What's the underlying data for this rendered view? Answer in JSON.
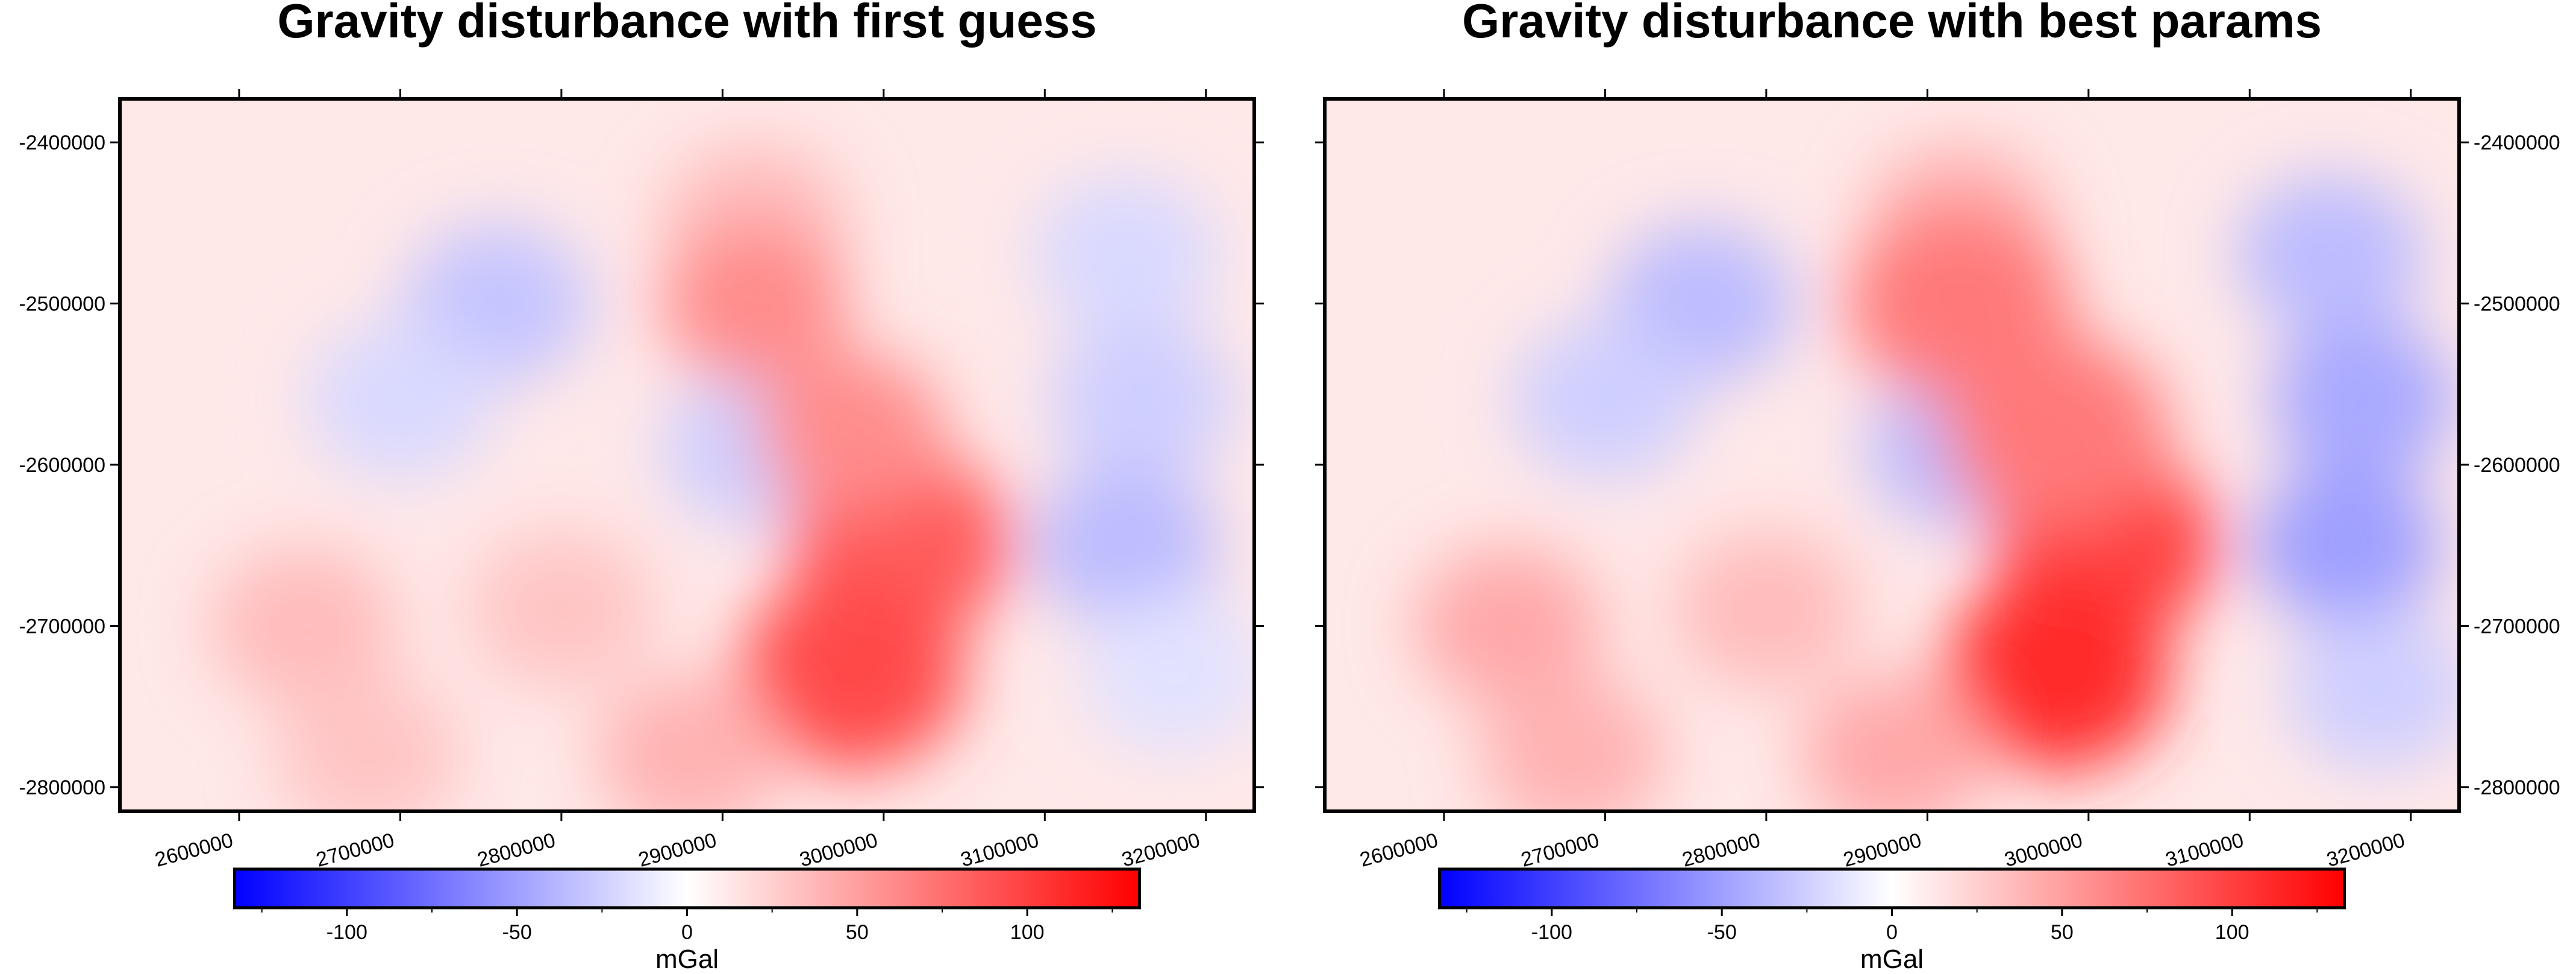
{
  "chart_data": [
    {
      "type": "heatmap",
      "title": "Gravity disturbance with first guess",
      "x_ticks": [
        2600000,
        2700000,
        2800000,
        2900000,
        3000000,
        3100000,
        3200000
      ],
      "y_ticks": [
        -2400000,
        -2500000,
        -2600000,
        -2700000,
        -2800000
      ],
      "y_axis_side": "left",
      "xlim": [
        2526000,
        3230000
      ],
      "ylim": [
        -2815000,
        -2373000
      ],
      "colorbar": {
        "label": "mGal",
        "ticks": [
          -100,
          -50,
          0,
          50,
          100
        ],
        "range": [
          -133,
          133
        ],
        "colormap": "blue-white-red",
        "colors": {
          "low": "#0000ff",
          "mid": "#ffffff",
          "high": "#ff0000"
        }
      },
      "anomalies": [
        {
          "x": 2760000,
          "y": -2500000,
          "value": -30
        },
        {
          "x": 2700000,
          "y": -2560000,
          "value": -20
        },
        {
          "x": 2920000,
          "y": -2590000,
          "value": -25
        },
        {
          "x": 3150000,
          "y": -2470000,
          "value": -20
        },
        {
          "x": 3160000,
          "y": -2560000,
          "value": -25
        },
        {
          "x": 3150000,
          "y": -2650000,
          "value": -35
        },
        {
          "x": 3180000,
          "y": -2730000,
          "value": -15
        },
        {
          "x": 2920000,
          "y": -2450000,
          "value": 35
        },
        {
          "x": 2920000,
          "y": -2500000,
          "value": 60
        },
        {
          "x": 3010000,
          "y": -2650000,
          "value": 85
        },
        {
          "x": 2980000,
          "y": -2730000,
          "value": 95
        },
        {
          "x": 2980000,
          "y": -2580000,
          "value": 60
        },
        {
          "x": 2640000,
          "y": -2700000,
          "value": 35
        },
        {
          "x": 2800000,
          "y": -2690000,
          "value": 30
        },
        {
          "x": 2880000,
          "y": -2780000,
          "value": 40
        },
        {
          "x": 2680000,
          "y": -2780000,
          "value": 30
        }
      ]
    },
    {
      "type": "heatmap",
      "title": "Gravity disturbance with best params",
      "x_ticks": [
        2600000,
        2700000,
        2800000,
        2900000,
        3000000,
        3100000,
        3200000
      ],
      "y_ticks": [
        -2400000,
        -2500000,
        -2600000,
        -2700000,
        -2800000
      ],
      "y_axis_side": "right",
      "xlim": [
        2526000,
        3230000
      ],
      "ylim": [
        -2815000,
        -2373000
      ],
      "colorbar": {
        "label": "mGal",
        "ticks": [
          -100,
          -50,
          0,
          50,
          100
        ],
        "range": [
          -133,
          133
        ],
        "colormap": "blue-white-red",
        "colors": {
          "low": "#0000ff",
          "mid": "#ffffff",
          "high": "#ff0000"
        }
      },
      "anomalies": [
        {
          "x": 2760000,
          "y": -2500000,
          "value": -35
        },
        {
          "x": 2700000,
          "y": -2560000,
          "value": -25
        },
        {
          "x": 2920000,
          "y": -2590000,
          "value": -35
        },
        {
          "x": 3150000,
          "y": -2470000,
          "value": -35
        },
        {
          "x": 3170000,
          "y": -2560000,
          "value": -45
        },
        {
          "x": 3160000,
          "y": -2650000,
          "value": -50
        },
        {
          "x": 3180000,
          "y": -2740000,
          "value": -25
        },
        {
          "x": 2920000,
          "y": -2450000,
          "value": 40
        },
        {
          "x": 2920000,
          "y": -2500000,
          "value": 70
        },
        {
          "x": 3010000,
          "y": -2650000,
          "value": 100
        },
        {
          "x": 2980000,
          "y": -2730000,
          "value": 110
        },
        {
          "x": 2980000,
          "y": -2580000,
          "value": 70
        },
        {
          "x": 2640000,
          "y": -2700000,
          "value": 45
        },
        {
          "x": 2800000,
          "y": -2690000,
          "value": 35
        },
        {
          "x": 2880000,
          "y": -2780000,
          "value": 45
        },
        {
          "x": 2680000,
          "y": -2780000,
          "value": 40
        }
      ]
    }
  ]
}
